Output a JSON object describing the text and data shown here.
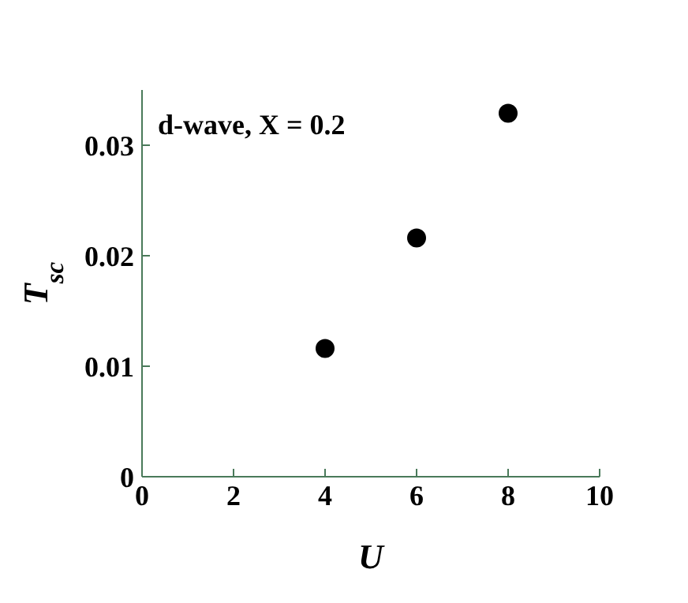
{
  "chart_data": {
    "type": "scatter",
    "xlabel": "U",
    "ylabel": "T$_{sc}$",
    "annotations": [
      "d-wave, X = 0.2"
    ],
    "x": [
      4,
      6,
      8
    ],
    "series": [
      {
        "color": "#000000",
        "values": [
          0.0116,
          0.0216,
          0.0329
        ]
      }
    ],
    "xlim": [
      0,
      10
    ],
    "xticks": [
      0,
      2,
      4,
      6,
      8,
      10
    ],
    "ylim": [
      0,
      0.035
    ],
    "yticks": [
      0,
      0.01,
      0.02,
      0.03
    ],
    "grid": false,
    "marker": "circle"
  }
}
